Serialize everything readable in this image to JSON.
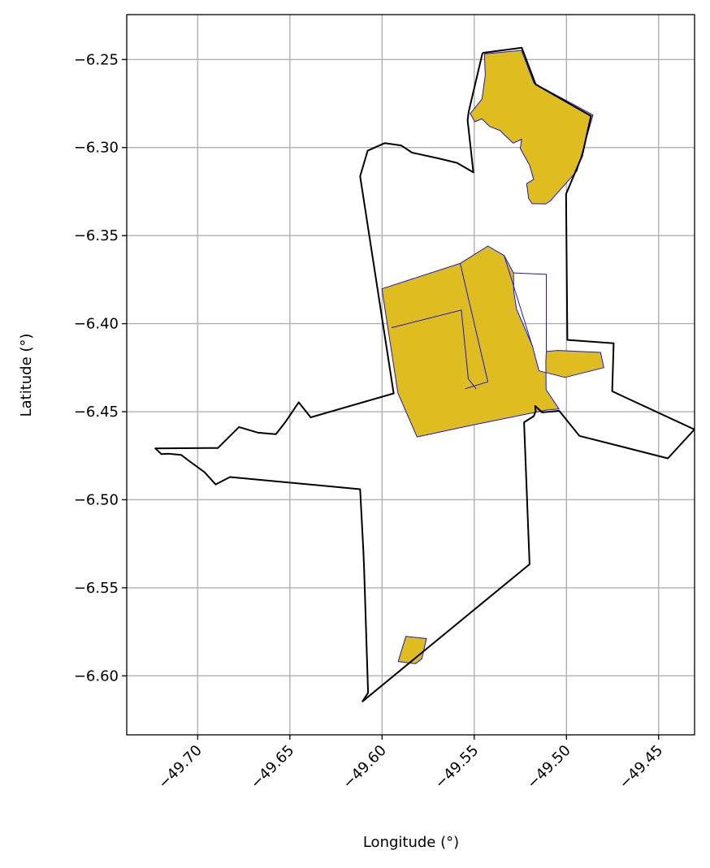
{
  "chart_data": {
    "type": "map",
    "xlabel": "Longitude (°)",
    "ylabel": "Latitude (°)",
    "xlim": [
      -49.7385,
      -49.4305
    ],
    "ylim": [
      -6.6335,
      -6.2245
    ],
    "xticks": [
      -49.7,
      -49.65,
      -49.6,
      -49.55,
      -49.5,
      -49.45
    ],
    "xtick_labels": [
      "−49.70",
      "−49.65",
      "−49.60",
      "−49.55",
      "−49.50",
      "−49.45"
    ],
    "yticks": [
      -6.25,
      -6.3,
      -6.35,
      -6.4,
      -6.45,
      -6.5,
      -6.55,
      -6.6
    ],
    "ytick_labels": [
      "−6.25",
      "−6.30",
      "−6.35",
      "−6.40",
      "−6.45",
      "−6.50",
      "−6.55",
      "−6.60"
    ],
    "grid": true,
    "colors": {
      "parcel_fill": "#dfbc1f",
      "parcel_edge": "#1a16d8",
      "boundary": "#000000",
      "grid": "#b0b0b0"
    },
    "boundary": [
      [
        -49.5455,
        -6.2462
      ],
      [
        -49.5242,
        -6.2433
      ],
      [
        -49.5167,
        -6.2641
      ],
      [
        -49.4867,
        -6.2821
      ],
      [
        -49.4915,
        -6.3047
      ],
      [
        -49.5002,
        -6.3264
      ],
      [
        -49.4995,
        -6.4092
      ],
      [
        -49.4744,
        -6.4111
      ],
      [
        -49.4752,
        -6.4384
      ],
      [
        -49.4306,
        -6.4601
      ],
      [
        -49.445,
        -6.4765
      ],
      [
        -49.493,
        -6.4637
      ],
      [
        -49.5039,
        -6.4495
      ],
      [
        -49.5132,
        -6.4504
      ],
      [
        -49.517,
        -6.4467
      ],
      [
        -49.5167,
        -6.4496
      ],
      [
        -49.5177,
        -6.4525
      ],
      [
        -49.523,
        -6.456
      ],
      [
        -49.52,
        -6.5366
      ],
      [
        -49.6106,
        -6.6145
      ],
      [
        -49.6076,
        -6.6096
      ],
      [
        -49.6097,
        -6.5404
      ],
      [
        -49.6101,
        -6.5299
      ],
      [
        -49.6119,
        -6.494
      ],
      [
        -49.6825,
        -6.4871
      ],
      [
        -49.6903,
        -6.4913
      ],
      [
        -49.6963,
        -6.4844
      ],
      [
        -49.7045,
        -6.4781
      ],
      [
        -49.709,
        -6.4745
      ],
      [
        -49.716,
        -6.4738
      ],
      [
        -49.7197,
        -6.4741
      ],
      [
        -49.723,
        -6.4708
      ],
      [
        -49.689,
        -6.4706
      ],
      [
        -49.6776,
        -6.4587
      ],
      [
        -49.6672,
        -6.4619
      ],
      [
        -49.6576,
        -6.4628
      ],
      [
        -49.6523,
        -6.4557
      ],
      [
        -49.6452,
        -6.4447
      ],
      [
        -49.6387,
        -6.4532
      ],
      [
        -49.5937,
        -6.4396
      ],
      [
        -49.6119,
        -6.3163
      ],
      [
        -49.6078,
        -6.3018
      ],
      [
        -49.5986,
        -6.2975
      ],
      [
        -49.5897,
        -6.2988
      ],
      [
        -49.5837,
        -6.3029
      ],
      [
        -49.5695,
        -6.3061
      ],
      [
        -49.5593,
        -6.3087
      ],
      [
        -49.5505,
        -6.3141
      ],
      [
        -49.5536,
        -6.2844
      ],
      [
        -49.553,
        -6.2795
      ],
      [
        -49.5455,
        -6.2462
      ]
    ],
    "parcels": [
      [
        [
          -49.5445,
          -6.2468
        ],
        [
          -49.5244,
          -6.2448
        ],
        [
          -49.5176,
          -6.2634
        ],
        [
          -49.4856,
          -6.2815
        ],
        [
          -49.4943,
          -6.3133
        ],
        [
          -49.5087,
          -6.3303
        ],
        [
          -49.5111,
          -6.332
        ],
        [
          -49.5186,
          -6.3319
        ],
        [
          -49.5205,
          -6.3289
        ],
        [
          -49.5216,
          -6.3205
        ],
        [
          -49.5178,
          -6.318
        ],
        [
          -49.52,
          -6.31
        ],
        [
          -49.525,
          -6.3006
        ],
        [
          -49.5243,
          -6.2953
        ],
        [
          -49.5289,
          -6.2975
        ],
        [
          -49.5338,
          -6.2927
        ],
        [
          -49.5359,
          -6.2904
        ],
        [
          -49.5417,
          -6.288
        ],
        [
          -49.5458,
          -6.2837
        ],
        [
          -49.5497,
          -6.2853
        ],
        [
          -49.5522,
          -6.2807
        ],
        [
          -49.5458,
          -6.2725
        ],
        [
          -49.544,
          -6.2588
        ],
        [
          -49.5445,
          -6.2468
        ]
      ],
      [
        [
          -49.6001,
          -6.3802
        ],
        [
          -49.5576,
          -6.3658
        ],
        [
          -49.5426,
          -6.3559
        ],
        [
          -49.5338,
          -6.3613
        ],
        [
          -49.5287,
          -6.3712
        ],
        [
          -49.5286,
          -6.3815
        ],
        [
          -49.5271,
          -6.3917
        ],
        [
          -49.5185,
          -6.4125
        ],
        [
          -49.5149,
          -6.4268
        ],
        [
          -49.5008,
          -6.4305
        ],
        [
          -49.4797,
          -6.425
        ],
        [
          -49.4815,
          -6.4163
        ],
        [
          -49.5046,
          -6.4152
        ],
        [
          -49.5109,
          -6.4158
        ],
        [
          -49.5112,
          -6.4217
        ],
        [
          -49.511,
          -6.4375
        ],
        [
          -49.504,
          -6.4485
        ],
        [
          -49.5105,
          -6.449
        ],
        [
          -49.551,
          -6.4576
        ],
        [
          -49.581,
          -6.4643
        ],
        [
          -49.5914,
          -6.4394
        ],
        [
          -49.6001,
          -6.3802
        ]
      ],
      [
        [
          -49.5871,
          -6.5776
        ],
        [
          -49.5759,
          -6.5788
        ],
        [
          -49.5784,
          -6.5903
        ],
        [
          -49.5818,
          -6.5931
        ],
        [
          -49.5913,
          -6.5919
        ],
        [
          -49.5871,
          -6.5776
        ]
      ]
    ],
    "parcel_interior_edges": [
      [
        [
          -49.5949,
          -6.4023
        ],
        [
          -49.557,
          -6.3923
        ],
        [
          -49.5532,
          -6.4313
        ],
        [
          -49.549,
          -6.437
        ]
      ],
      [
        [
          -49.5576,
          -6.3658
        ],
        [
          -49.5426,
          -6.433
        ],
        [
          -49.555,
          -6.437
        ]
      ],
      [
        [
          -49.5338,
          -6.3613
        ],
        [
          -49.5186,
          -6.4125
        ]
      ],
      [
        [
          -49.5287,
          -6.3712
        ],
        [
          -49.5109,
          -6.372
        ],
        [
          -49.5109,
          -6.4158
        ]
      ]
    ]
  }
}
